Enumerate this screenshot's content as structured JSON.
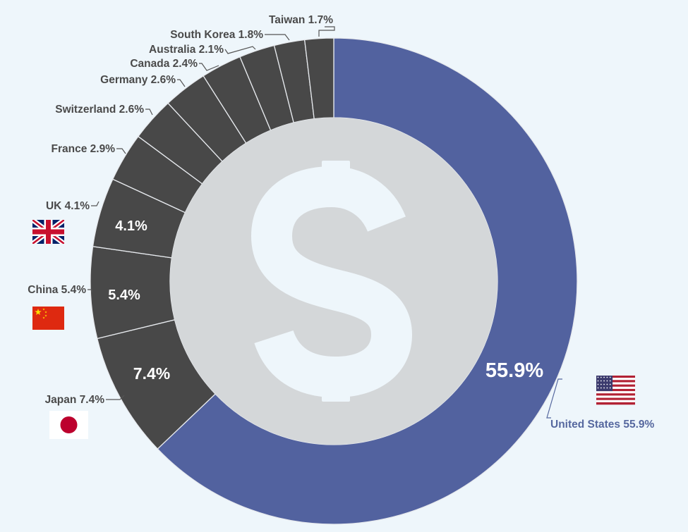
{
  "colors": {
    "background": "#eef6fb",
    "us_slice": "#52629f",
    "other_slice": "#484848",
    "slice_divider": "#e7eaee",
    "inner_disc": "#d4d7d9",
    "dollar_sign": "#eef6fb",
    "us_label": "#56689f",
    "other_label": "#4a4a4a",
    "inner_label": "#ffffff"
  },
  "center_icon": "dollar-sign-icon",
  "chart_data": {
    "type": "pie",
    "variant": "donut",
    "title": "",
    "unit": "%",
    "slices": [
      {
        "name": "United States",
        "value": 55.9,
        "label": "United States 55.9%",
        "inner_label": "55.9%",
        "flag": "us-flag-icon"
      },
      {
        "name": "Japan",
        "value": 7.4,
        "label": "Japan 7.4%",
        "inner_label": "7.4%",
        "flag": "japan-flag-icon"
      },
      {
        "name": "China",
        "value": 5.4,
        "label": "China 5.4%",
        "inner_label": "5.4%",
        "flag": "china-flag-icon"
      },
      {
        "name": "UK",
        "value": 4.1,
        "label": "UK 4.1%",
        "inner_label": "4.1%",
        "flag": "uk-flag-icon"
      },
      {
        "name": "France",
        "value": 2.9,
        "label": "France 2.9%"
      },
      {
        "name": "Switzerland",
        "value": 2.6,
        "label": "Switzerland 2.6%"
      },
      {
        "name": "Germany",
        "value": 2.6,
        "label": "Germany 2.6%"
      },
      {
        "name": "Canada",
        "value": 2.4,
        "label": "Canada 2.4%"
      },
      {
        "name": "Australia",
        "value": 2.1,
        "label": "Australia 2.1%"
      },
      {
        "name": "South Korea",
        "value": 1.8,
        "label": "South Korea 1.8%"
      },
      {
        "name": "Taiwan",
        "value": 1.7,
        "label": "Taiwan 1.7%"
      }
    ]
  }
}
